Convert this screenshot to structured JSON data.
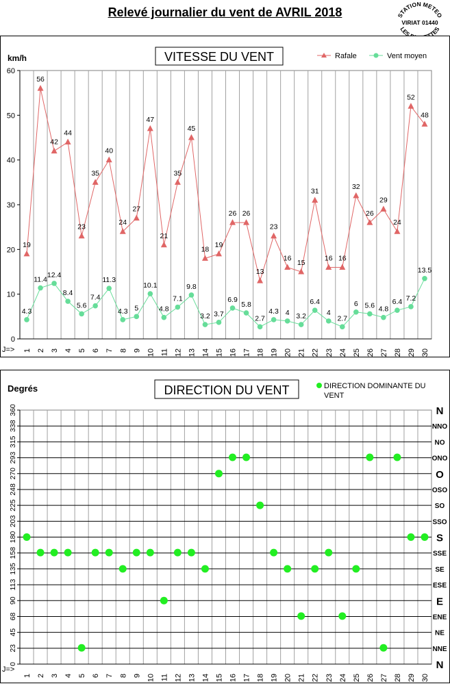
{
  "page": {
    "title": "Relevé journalier du vent de AVRIL 2018"
  },
  "stamp": {
    "top": "STATION METEO",
    "middle": "VIRIAT 01440",
    "bottom": "LES FAUVETTES"
  },
  "colors": {
    "rafale": "#e06666",
    "moyen": "#66dd99",
    "direction": "#22ee22"
  },
  "chart_data": [
    {
      "type": "line",
      "title": "VITESSE DU VENT",
      "ylabel": "km/h",
      "xlabel": "J=>",
      "ylim": [
        0,
        60
      ],
      "yticks": [
        0,
        10,
        20,
        30,
        40,
        50,
        60
      ],
      "x": [
        1,
        2,
        3,
        4,
        5,
        6,
        7,
        8,
        9,
        10,
        11,
        12,
        13,
        14,
        15,
        16,
        17,
        18,
        19,
        20,
        21,
        22,
        23,
        24,
        25,
        26,
        27,
        28,
        29,
        30
      ],
      "legend_position": "top-right",
      "series": [
        {
          "name": "Rafale",
          "color": "#e06666",
          "marker": "triangle",
          "values": [
            19,
            56,
            42,
            44,
            23,
            35,
            40,
            24,
            27,
            47,
            21,
            35,
            45,
            18,
            19,
            26,
            26,
            13,
            23,
            16,
            15,
            31,
            16,
            16,
            32,
            26,
            29,
            24,
            52,
            48
          ],
          "labels": [
            "19",
            "56",
            "42",
            "44",
            "23",
            "35",
            "40",
            "24",
            "27",
            "47",
            "21",
            "35",
            "45",
            "18",
            "19",
            "26",
            "26",
            "13",
            "23",
            "16",
            "15",
            "31",
            "16",
            "16",
            "32",
            "26",
            "29",
            "24",
            "52",
            "48"
          ]
        },
        {
          "name": "Vent moyen",
          "color": "#66dd99",
          "marker": "circle",
          "values": [
            4.3,
            11.4,
            12.4,
            8.4,
            5.6,
            7.4,
            11.3,
            4.3,
            5,
            10.1,
            4.8,
            7.1,
            9.8,
            3.2,
            3.7,
            6.9,
            5.8,
            2.7,
            4.3,
            4,
            3.2,
            6.4,
            4,
            2.7,
            6,
            5.6,
            4.8,
            6.4,
            7.2,
            13.5
          ],
          "labels": [
            "4.3",
            "11.4",
            "12.4",
            "8.4",
            "5.6",
            "7.4",
            "11.3",
            "4.3",
            "5",
            "10.1",
            "4.8",
            "7.1",
            "9.8",
            "3.2",
            "3.7",
            "6.9",
            "5.8",
            "2.7",
            "4.3",
            "4",
            "3.2",
            "6.4",
            "4",
            "2.7",
            "6",
            "5.6",
            "4.8",
            "6.4",
            "7.2",
            "13.5"
          ]
        }
      ]
    },
    {
      "type": "scatter",
      "title": "DIRECTION DU VENT",
      "ylabel": "Degrés",
      "xlabel": "J=>",
      "ylim": [
        0,
        360
      ],
      "yticks": [
        0,
        23,
        45,
        68,
        90,
        113,
        135,
        158,
        180,
        203,
        225,
        248,
        270,
        293,
        315,
        338,
        360
      ],
      "compass": [
        "N",
        "NNE",
        "NE",
        "ENE",
        "E",
        "ESE",
        "SE",
        "SSE",
        "S",
        "SSO",
        "SO",
        "OSO",
        "O",
        "ONO",
        "NO",
        "NNO",
        "N"
      ],
      "x": [
        1,
        2,
        3,
        4,
        5,
        6,
        7,
        8,
        9,
        10,
        11,
        12,
        13,
        14,
        15,
        16,
        17,
        18,
        19,
        20,
        21,
        22,
        23,
        24,
        25,
        26,
        27,
        28,
        29,
        30
      ],
      "legend_position": "top-right",
      "series": [
        {
          "name": "DIRECTION DOMINANTE DU VENT",
          "color": "#22ee22",
          "values": [
            180,
            158,
            158,
            158,
            23,
            158,
            158,
            135,
            158,
            158,
            90,
            158,
            158,
            135,
            270,
            293,
            293,
            225,
            158,
            135,
            68,
            135,
            158,
            68,
            135,
            293,
            23,
            293,
            180,
            180
          ]
        }
      ]
    }
  ]
}
